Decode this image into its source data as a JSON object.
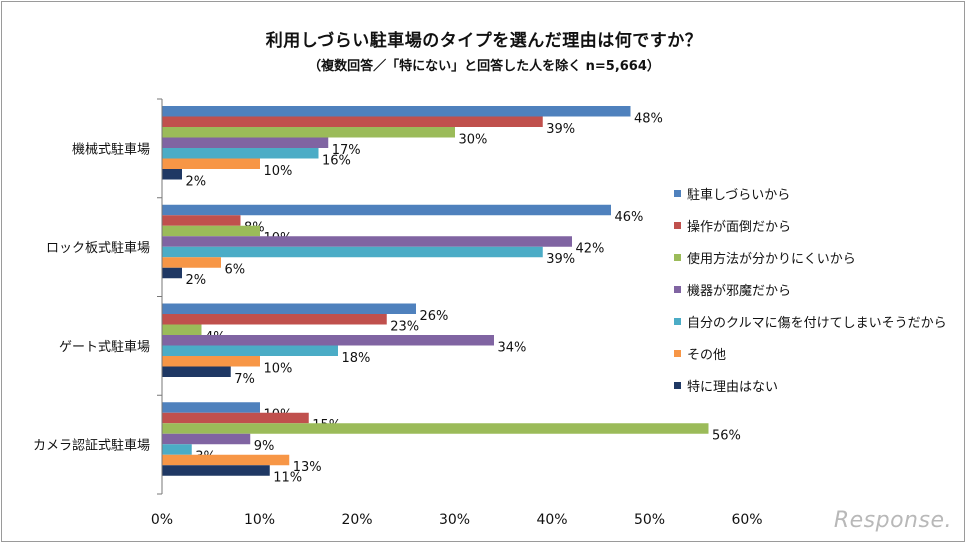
{
  "title": "利用しづらい駐車場のタイプを選んだ理由は何ですか？",
  "subtitle": "（複数回答／「特にない」と回答した人を除く n=5,664）",
  "watermark": "Response.",
  "chart_data": {
    "type": "bar",
    "orientation": "horizontal",
    "categories": [
      "機械式駐車場",
      "ロック板式駐車場",
      "ゲート式駐車場",
      "カメラ認証式駐車場"
    ],
    "series": [
      {
        "name": "駐車しづらいから",
        "color": "#4f81bd",
        "values": [
          48,
          46,
          26,
          10
        ]
      },
      {
        "name": "操作が面倒だから",
        "color": "#c0504d",
        "values": [
          39,
          8,
          23,
          15
        ]
      },
      {
        "name": "使用方法が分かりにくいから",
        "color": "#9bbb59",
        "values": [
          30,
          10,
          4,
          56
        ]
      },
      {
        "name": "機器が邪魔だから",
        "color": "#8064a2",
        "values": [
          17,
          42,
          34,
          9
        ]
      },
      {
        "name": "自分のクルマに傷を付けてしまいそうだから",
        "color": "#4bacc6",
        "values": [
          16,
          39,
          18,
          3
        ]
      },
      {
        "name": "その他",
        "color": "#f79646",
        "values": [
          10,
          6,
          10,
          13
        ]
      },
      {
        "name": "特に理由はない",
        "color": "#1f3864",
        "values": [
          2,
          2,
          7,
          11
        ]
      }
    ],
    "value_suffix": "%",
    "xlim": [
      0,
      60
    ],
    "xticks": [
      "0%",
      "10%",
      "20%",
      "30%",
      "40%",
      "50%",
      "60%"
    ],
    "legend_position": "right",
    "grid": false
  }
}
